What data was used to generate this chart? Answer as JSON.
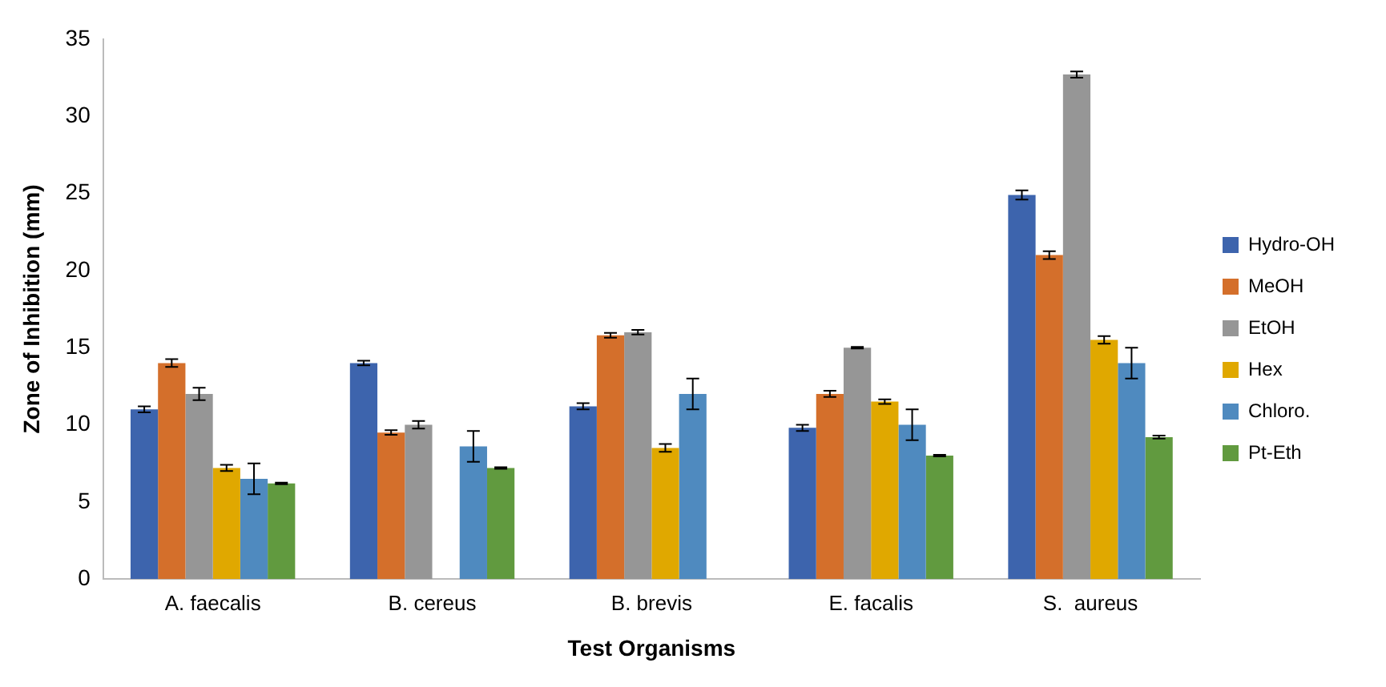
{
  "chart_data": {
    "type": "bar",
    "xlabel": "Test Organisms",
    "ylabel": "Zone of Inhibition (mm)",
    "categories": [
      "A. faecalis",
      "B. cereus",
      "B. brevis",
      "E. facalis",
      "S.  aureus"
    ],
    "series": [
      {
        "name": "Hydro-OH",
        "color": "#3d64ad",
        "values": [
          11,
          14,
          11.2,
          9.8,
          24.9
        ],
        "errors": [
          0.2,
          0.15,
          0.2,
          0.2,
          0.3
        ]
      },
      {
        "name": "MeOH",
        "color": "#d46f2b",
        "values": [
          14,
          9.5,
          15.8,
          12,
          21
        ],
        "errors": [
          0.25,
          0.15,
          0.15,
          0.2,
          0.25
        ]
      },
      {
        "name": "EtOH",
        "color": "#969696",
        "values": [
          12,
          10,
          16,
          15,
          32.7
        ],
        "errors": [
          0.4,
          0.25,
          0.15,
          0.05,
          0.2
        ]
      },
      {
        "name": "Hex",
        "color": "#e0a800",
        "values": [
          7.2,
          null,
          8.5,
          11.5,
          15.5
        ],
        "errors": [
          0.2,
          null,
          0.25,
          0.15,
          0.25
        ]
      },
      {
        "name": "Chloro.",
        "color": "#4f8abf",
        "values": [
          6.5,
          8.6,
          12,
          10,
          14
        ],
        "errors": [
          1,
          1,
          1,
          1,
          1
        ]
      },
      {
        "name": "Pt-Eth",
        "color": "#619a3f",
        "values": [
          6.2,
          7.2,
          0,
          8,
          9.2
        ],
        "errors": [
          0.05,
          0.05,
          null,
          0.05,
          0.1
        ]
      }
    ],
    "ylim": [
      0,
      35
    ],
    "yticks": [
      0,
      5,
      10,
      15,
      20,
      25,
      30,
      35
    ],
    "grid": false,
    "legend": "right"
  }
}
